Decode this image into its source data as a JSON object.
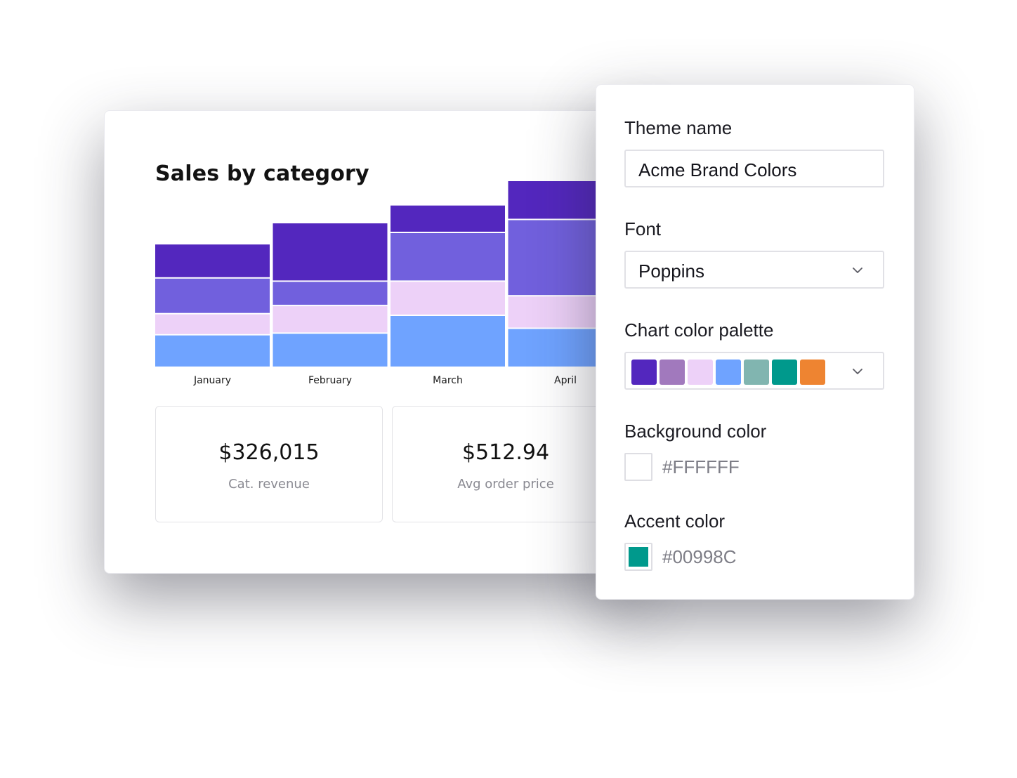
{
  "dashboard": {
    "title": "Sales by category",
    "kpis": [
      {
        "value": "$326,015",
        "label": "Cat. revenue"
      },
      {
        "value": "$512.94",
        "label": "Avg order price"
      }
    ]
  },
  "chart_data": {
    "type": "bar",
    "stacked": true,
    "title": "Sales by category",
    "categories": [
      "January",
      "February",
      "March",
      "April"
    ],
    "series": [
      {
        "color": "#6FA3FF",
        "values": [
          40,
          42,
          64,
          48
        ]
      },
      {
        "color": "#EDD1F8",
        "values": [
          26,
          34,
          42,
          40
        ]
      },
      {
        "color": "#7160DD",
        "values": [
          44,
          30,
          60,
          94
        ]
      },
      {
        "color": "#5327BE",
        "values": [
          42,
          72,
          34,
          48
        ]
      }
    ],
    "ylim": [
      0,
      230
    ],
    "grid": false,
    "legend": "none"
  },
  "theme_panel": {
    "theme_name_label": "Theme name",
    "theme_name_value": "Acme Brand Colors",
    "font_label": "Font",
    "font_value": "Poppins",
    "palette_label": "Chart color palette",
    "palette_colors": [
      "#5327BE",
      "#A179BD",
      "#EDD1F8",
      "#6FA3FF",
      "#81B5B0",
      "#00998C",
      "#EE8431"
    ],
    "background_label": "Background color",
    "background_value": "#FFFFFF",
    "accent_label": "Accent color",
    "accent_value": "#00998C",
    "icons": {
      "font_dropdown": "chevron-down-icon",
      "palette_dropdown": "chevron-down-icon"
    }
  }
}
